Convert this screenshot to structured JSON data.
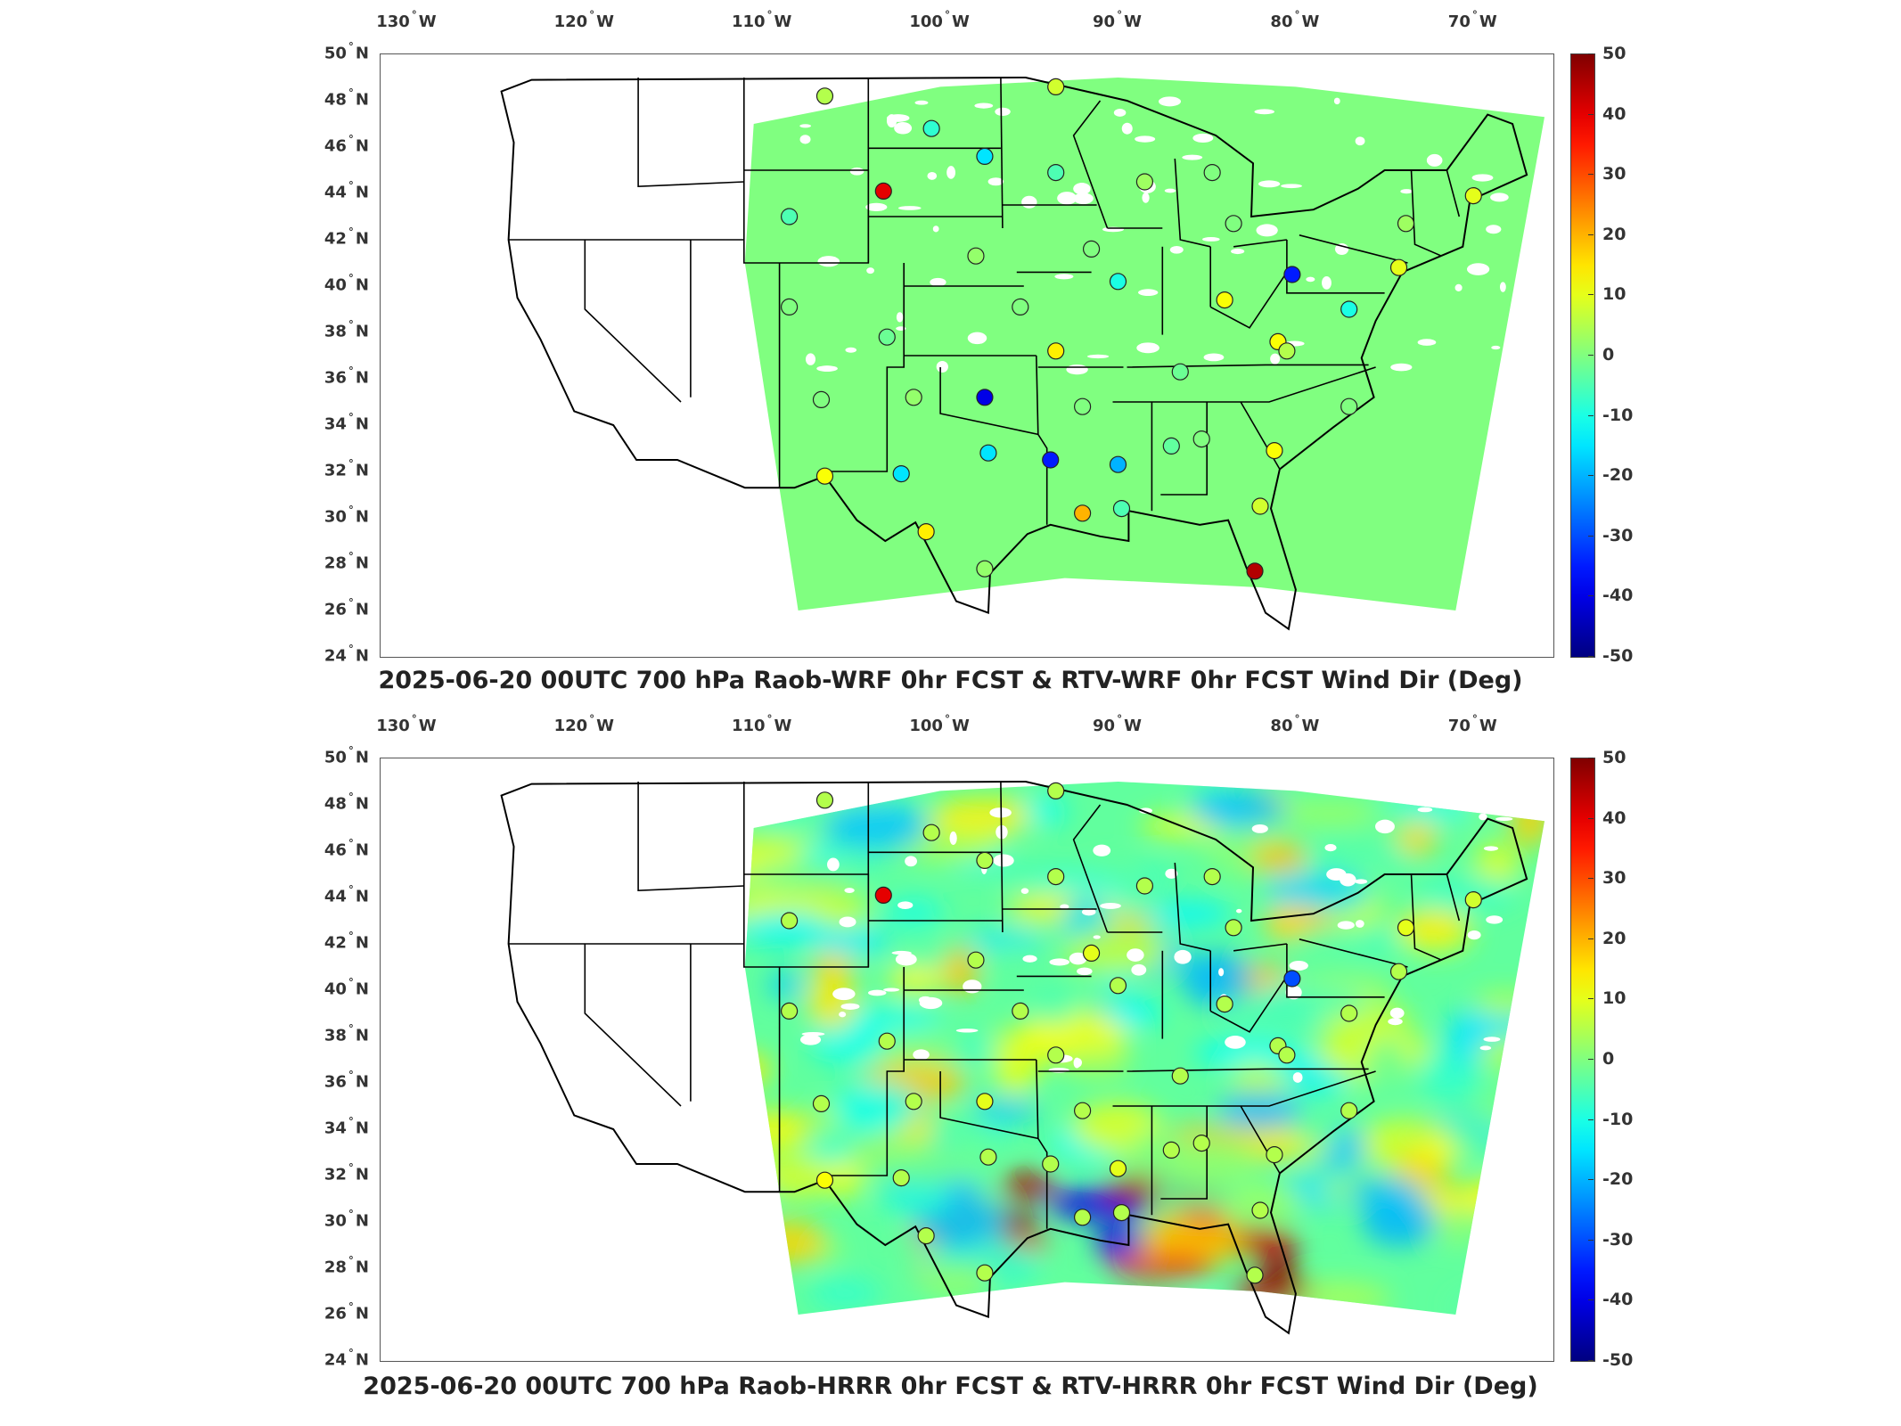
{
  "map_data": {
    "type": "geographic-field-map",
    "region": "Contiguous United States",
    "longitude_ticks": [
      "130",
      "120",
      "110",
      "100",
      "90",
      "80",
      "70"
    ],
    "longitude_suffix": "W",
    "latitude_ticks": [
      "50",
      "48",
      "46",
      "44",
      "42",
      "40",
      "38",
      "36",
      "34",
      "32",
      "30",
      "28",
      "26",
      "24"
    ],
    "latitude_suffix": "N",
    "colorbar": {
      "colormap": "jet",
      "range": [
        -50,
        50
      ],
      "ticks": [
        "50",
        "40",
        "30",
        "20",
        "10",
        "0",
        "-10",
        "-20",
        "-30",
        "-40",
        "-50"
      ]
    },
    "stations": [
      {
        "lon": -106.5,
        "lat": 48.2
      },
      {
        "lon": -93.5,
        "lat": 48.6
      },
      {
        "lon": -100.5,
        "lat": 46.8
      },
      {
        "lon": -97.5,
        "lat": 45.6
      },
      {
        "lon": -93.5,
        "lat": 44.9
      },
      {
        "lon": -88.5,
        "lat": 44.5
      },
      {
        "lon": -84.7,
        "lat": 44.9
      },
      {
        "lon": -103.2,
        "lat": 44.1
      },
      {
        "lon": -108.5,
        "lat": 43.0
      },
      {
        "lon": -83.5,
        "lat": 42.7
      },
      {
        "lon": -73.8,
        "lat": 42.7
      },
      {
        "lon": -70.0,
        "lat": 43.9
      },
      {
        "lon": -91.5,
        "lat": 41.6
      },
      {
        "lon": -98.0,
        "lat": 41.3
      },
      {
        "lon": -80.2,
        "lat": 40.5
      },
      {
        "lon": -74.2,
        "lat": 40.8
      },
      {
        "lon": -90.0,
        "lat": 40.2
      },
      {
        "lon": -84.0,
        "lat": 39.4
      },
      {
        "lon": -108.5,
        "lat": 39.1
      },
      {
        "lon": -95.5,
        "lat": 39.1
      },
      {
        "lon": -77.0,
        "lat": 39.0
      },
      {
        "lon": -81.0,
        "lat": 37.6
      },
      {
        "lon": -103.0,
        "lat": 37.8
      },
      {
        "lon": -93.5,
        "lat": 37.2
      },
      {
        "lon": -80.5,
        "lat": 37.2
      },
      {
        "lon": -86.5,
        "lat": 36.3
      },
      {
        "lon": -106.7,
        "lat": 35.1
      },
      {
        "lon": -101.5,
        "lat": 35.2
      },
      {
        "lon": -97.5,
        "lat": 35.2
      },
      {
        "lon": -92.0,
        "lat": 34.8
      },
      {
        "lon": -77.0,
        "lat": 34.8
      },
      {
        "lon": -85.3,
        "lat": 33.4
      },
      {
        "lon": -87.0,
        "lat": 33.1
      },
      {
        "lon": -97.3,
        "lat": 32.8
      },
      {
        "lon": -93.8,
        "lat": 32.5
      },
      {
        "lon": -90.0,
        "lat": 32.3
      },
      {
        "lon": -81.2,
        "lat": 32.9
      },
      {
        "lon": -106.5,
        "lat": 31.8
      },
      {
        "lon": -102.2,
        "lat": 31.9
      },
      {
        "lon": -92.0,
        "lat": 30.2
      },
      {
        "lon": -89.8,
        "lat": 30.4
      },
      {
        "lon": -82.0,
        "lat": 30.5
      },
      {
        "lon": -100.8,
        "lat": 29.4
      },
      {
        "lon": -97.5,
        "lat": 27.8
      },
      {
        "lon": -82.3,
        "lat": 27.7
      }
    ]
  },
  "panels": [
    {
      "title": "2025-06-20 00UTC 700 hPa Raob-WRF 0hr FCST & RTV-WRF 0hr FCST Wind Dir (Deg)",
      "background_field": "near-zero",
      "station_values": [
        5,
        8,
        -8,
        -15,
        -5,
        3,
        0,
        40,
        -5,
        0,
        3,
        10,
        0,
        2,
        -35,
        10,
        -10,
        12,
        0,
        0,
        -10,
        12,
        -2,
        14,
        5,
        -2,
        0,
        2,
        -40,
        0,
        0,
        0,
        -3,
        -15,
        -35,
        -20,
        12,
        12,
        -15,
        20,
        -5,
        8,
        14,
        2,
        45
      ]
    },
    {
      "title": "2025-06-20 00UTC 700 hPa Raob-HRRR 0hr FCST & RTV-HRRR 0hr FCST Wind Dir (Deg)",
      "background_field": "varied",
      "station_values": [
        5,
        5,
        5,
        5,
        5,
        5,
        5,
        40,
        5,
        5,
        10,
        8,
        10,
        5,
        -30,
        5,
        5,
        5,
        5,
        5,
        5,
        5,
        5,
        5,
        5,
        5,
        5,
        5,
        10,
        5,
        5,
        5,
        5,
        5,
        5,
        10,
        5,
        12,
        5,
        5,
        5,
        5,
        5,
        5,
        5
      ]
    }
  ]
}
